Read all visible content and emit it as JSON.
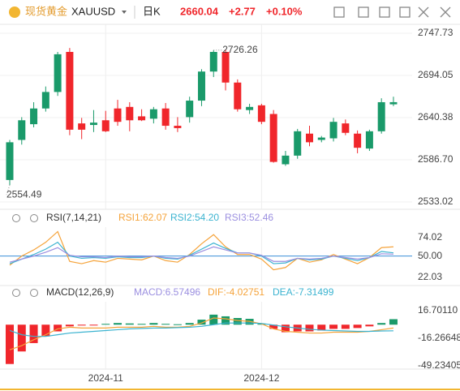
{
  "header": {
    "name": "现货黄金",
    "symbol": "XAUUSD",
    "period": "日K",
    "price": "2660.04",
    "change": "+2.77",
    "change_pct": "+0.10%"
  },
  "chart_data": [
    {
      "type": "candlestick",
      "categories": [
        null,
        null,
        null,
        null,
        null,
        null,
        null,
        null,
        "2024-11",
        null,
        null,
        null,
        null,
        null,
        null,
        null,
        null,
        null,
        null,
        null,
        null,
        "2024-12",
        null,
        null,
        null,
        null,
        null,
        null,
        null,
        null,
        null,
        null,
        null
      ],
      "open": [
        2561,
        2612,
        2632,
        2652,
        2673,
        2724,
        2633,
        2631,
        2637,
        2652,
        2654,
        2642,
        2639,
        2652,
        2630,
        2641,
        2662,
        2699,
        2724,
        2685,
        2650,
        2656,
        2645,
        2581,
        2592,
        2620,
        2612,
        2614,
        2633,
        2620,
        2601,
        2623,
        2657.3
      ],
      "high": [
        2612,
        2641,
        2660,
        2680,
        2724,
        2729,
        2640,
        2650,
        2649,
        2663,
        2660,
        2651,
        2654,
        2659,
        2641,
        2667,
        2702,
        2726.26,
        2727,
        2689,
        2658,
        2658,
        2650,
        2598,
        2626,
        2630,
        2617,
        2640,
        2638,
        2624,
        2625,
        2665,
        2667
      ],
      "low": [
        2554.49,
        2606,
        2628,
        2648,
        2668,
        2618,
        2613,
        2622,
        2622,
        2630,
        2623,
        2636,
        2633,
        2625,
        2622,
        2634,
        2655,
        2692,
        2675,
        2648,
        2645,
        2632,
        2583,
        2579,
        2588,
        2604,
        2609,
        2610,
        2618,
        2595,
        2598,
        2620,
        2655
      ],
      "close": [
        2609,
        2637,
        2652,
        2673,
        2721,
        2625,
        2625,
        2634,
        2623,
        2635,
        2637,
        2637,
        2651,
        2630,
        2627,
        2662,
        2699,
        2724,
        2685,
        2651,
        2654,
        2635,
        2584,
        2592,
        2623,
        2609,
        2615,
        2635,
        2621,
        2602,
        2623,
        2660,
        2660.04
      ],
      "up_color": "#1a9a6a",
      "down_color": "#f0262b",
      "annotations": [
        {
          "text": "2726.26",
          "index": 17,
          "value": 2726.26
        },
        {
          "text": "2554.49",
          "index": 0,
          "value": 2554.49
        }
      ],
      "ylim": [
        2523.7,
        2759.1
      ],
      "yticks": [
        2747.73,
        2694.05,
        2640.38,
        {
          "value": 2586.7,
          "label": "2586.70"
        },
        2533.02
      ],
      "grid": true
    },
    {
      "type": "line",
      "title": "RSI(7,14,21)",
      "series": [
        {
          "name": "RSI1:62.07",
          "color": "#f5a33a",
          "values": [
            38,
            50,
            58,
            68,
            82,
            43,
            40,
            44,
            42,
            47,
            46,
            45,
            50,
            44,
            42,
            52,
            66,
            78,
            62,
            52,
            52,
            46,
            32,
            35,
            47,
            42,
            45,
            52,
            46,
            40,
            48,
            61,
            62.07
          ]
        },
        {
          "name": "RSI2:54.20",
          "color": "#3bb3d0",
          "values": [
            40,
            46,
            52,
            59,
            68,
            50,
            47,
            48,
            47,
            49,
            48,
            48,
            50,
            47,
            46,
            51,
            59,
            67,
            60,
            54,
            54,
            50,
            40,
            41,
            47,
            45,
            46,
            50,
            47,
            44,
            48,
            56,
            54.2
          ]
        },
        {
          "name": "RSI3:52.46",
          "color": "#9b8fe0",
          "values": [
            42,
            46,
            50,
            55,
            61,
            51,
            49,
            49,
            48,
            50,
            49,
            49,
            50,
            48,
            47,
            50,
            56,
            62,
            58,
            54,
            54,
            51,
            43,
            43,
            47,
            46,
            47,
            50,
            48,
            46,
            48,
            53,
            52.46
          ]
        }
      ],
      "hline": {
        "value": 50,
        "color": "#3a8fd8"
      },
      "ylim": [
        11.4,
        87.8
      ],
      "yticks": [
        74.02,
        {
          "value": 50,
          "label": "50.00"
        },
        22.03
      ]
    },
    {
      "type": "macd",
      "title": "MACD(12,26,9)",
      "histogram": {
        "name": "MACD:6.57496",
        "color": "#9b8fe0",
        "up_color": "#1a9a6a",
        "down_color": "#f0262b",
        "values": [
          -47,
          -32,
          -22,
          -14,
          -8,
          -2,
          -1,
          -0.5,
          1,
          2,
          1.5,
          1,
          2,
          1,
          0.5,
          2,
          6,
          12,
          10,
          8,
          7,
          1,
          -5,
          -9,
          -8,
          -8,
          -7,
          -5,
          -5,
          -4,
          -2,
          2,
          6.57496
        ]
      },
      "series": [
        {
          "name": "DIF:-4.02751",
          "color": "#f5a33a",
          "values": [
            -30,
            -25,
            -18,
            -12,
            -5,
            -3,
            -4,
            -4,
            -4,
            -3,
            -3,
            -3,
            -2,
            -3,
            -3,
            -2,
            2,
            8,
            7,
            5,
            4,
            1,
            -5,
            -8,
            -9,
            -10,
            -10,
            -9,
            -9,
            -9,
            -8,
            -6,
            -4.02751
          ]
        },
        {
          "name": "DEA:-7.31499",
          "color": "#3bb3d0",
          "values": [
            -7,
            -12,
            -14,
            -14,
            -12,
            -10,
            -9,
            -8,
            -7,
            -6,
            -5,
            -4.5,
            -4,
            -4,
            -3.5,
            -3,
            -2,
            0,
            2,
            2,
            2,
            1.5,
            -0.5,
            -2.5,
            -4,
            -5.5,
            -6.5,
            -7,
            -7.5,
            -8,
            -8,
            -7.5,
            -7.31499
          ]
        }
      ],
      "ylim": [
        -53.1,
        27.4
      ],
      "yticks": [
        {
          "value": 16.7011,
          "label": "16.70110"
        },
        -16.26648,
        -49.23405
      ]
    }
  ]
}
